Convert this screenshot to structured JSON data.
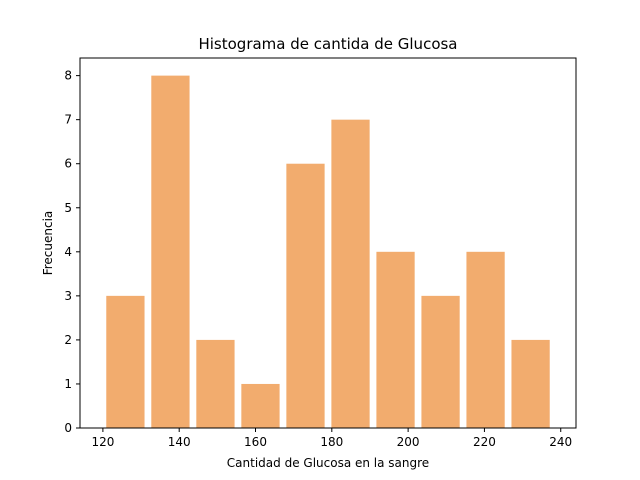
{
  "chart_data": {
    "type": "bar",
    "title": "Histograma de cantida de Glucosa",
    "xlabel": "Cantidad de Glucosa en la sangre",
    "ylabel": "Frecuencia",
    "bin_edges": [
      120,
      131.8,
      143.6,
      155.4,
      167.2,
      179.0,
      190.8,
      202.6,
      214.4,
      226.2,
      238.0
    ],
    "values": [
      3,
      8,
      2,
      1,
      6,
      7,
      4,
      3,
      4,
      2
    ],
    "bar_width_fraction": 0.85,
    "xlim": [
      114,
      244
    ],
    "ylim": [
      0,
      8.4
    ],
    "xticks": [
      120,
      140,
      160,
      180,
      200,
      220,
      240
    ],
    "yticks": [
      0,
      1,
      2,
      3,
      4,
      5,
      6,
      7,
      8
    ],
    "bar_color": "#f2ac6e",
    "grid": false,
    "legend": "none"
  }
}
